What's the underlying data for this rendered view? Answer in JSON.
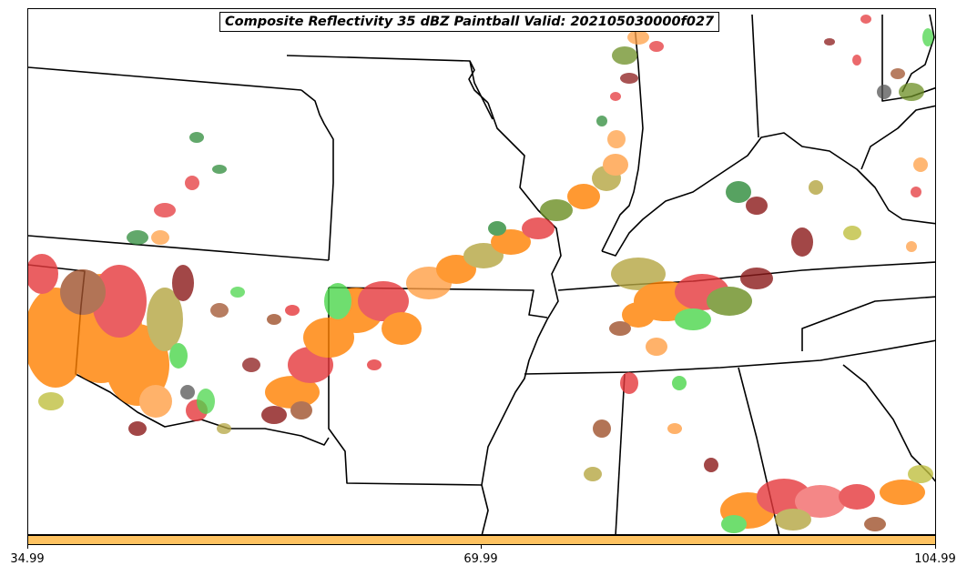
{
  "title": "Composite Reflectivity 35 dBZ Paintball Valid: 202105030000f027",
  "colorbar": {
    "color": "#fec260",
    "ticks": [
      "34.99",
      "69.99",
      "104.99"
    ]
  },
  "chart_data": {
    "type": "map",
    "field": "Composite Reflectivity",
    "threshold_dbz": 35,
    "valid": "202105030000f027",
    "colorbar_range": [
      34.99,
      104.99
    ],
    "member_colors": [
      "#ff8000",
      "#e5383b",
      "#f26a6a",
      "#2e8b3a",
      "#4cd64c",
      "#8b1a1a",
      "#a0522d",
      "#b5a642",
      "#6b8e23",
      "#555555",
      "#ff9f45",
      "#c0c040"
    ]
  }
}
